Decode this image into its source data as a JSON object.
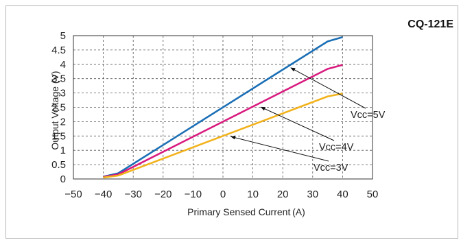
{
  "chart_data": {
    "type": "line",
    "title": "CQ-121E",
    "xlabel": "Primary Sensed Current (A)",
    "ylabel": "Output Voltage (V)",
    "xlim": [
      -50,
      50
    ],
    "ylim": [
      0,
      5
    ],
    "x_ticks": [
      "−50",
      "−40",
      "−30",
      "−20",
      "−10",
      "0",
      "10",
      "20",
      "30",
      "40",
      "50"
    ],
    "x_tick_values": [
      -50,
      -40,
      -30,
      -20,
      -10,
      0,
      10,
      20,
      30,
      40,
      50
    ],
    "y_ticks": [
      "0",
      "0.5",
      "1",
      "1.5",
      "2",
      "2.5",
      "3",
      "3.5",
      "4",
      "4.5",
      "5"
    ],
    "y_tick_values": [
      0,
      0.5,
      1,
      1.5,
      2,
      2.5,
      3,
      3.5,
      4,
      4.5,
      5
    ],
    "grid": true,
    "series": [
      {
        "name": "Vcc=5V",
        "color": "#1b6fb5",
        "x": [
          -40,
          -35,
          35,
          40
        ],
        "y": [
          0.08,
          0.2,
          4.8,
          4.95
        ],
        "annotation": {
          "text": "Vcc=5V",
          "point": [
            22,
            3.95
          ]
        }
      },
      {
        "name": "Vcc=4V",
        "color": "#d81b7e",
        "x": [
          -40,
          -35,
          35,
          40
        ],
        "y": [
          0.07,
          0.16,
          3.84,
          3.98
        ],
        "annotation": {
          "text": "Vcc=4V",
          "point": [
            12,
            2.58
          ]
        }
      },
      {
        "name": "Vcc=3V",
        "color": "#f2b21b",
        "x": [
          -40,
          -35,
          35,
          40
        ],
        "y": [
          0.05,
          0.12,
          2.88,
          2.98
        ],
        "annotation": {
          "text": "Vcc=3V",
          "point": [
            2,
            1.55
          ]
        }
      }
    ]
  }
}
